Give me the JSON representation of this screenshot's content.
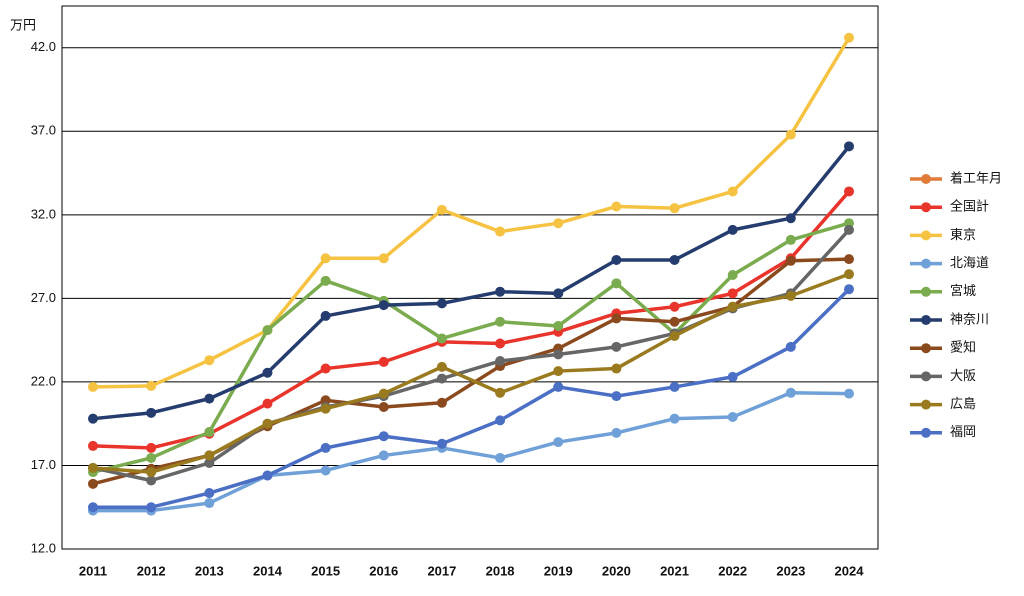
{
  "chart_data": {
    "type": "line",
    "y_unit": "万円",
    "x": [
      "2011",
      "2012",
      "2013",
      "2014",
      "2015",
      "2016",
      "2017",
      "2018",
      "2019",
      "2020",
      "2021",
      "2022",
      "2023",
      "2024"
    ],
    "ylim": [
      12,
      44.5
    ],
    "yticks": [
      {
        "value": 12,
        "label": "12.0"
      },
      {
        "value": 17,
        "label": "17.0"
      },
      {
        "value": 22,
        "label": "22.0"
      },
      {
        "value": 27,
        "label": "27.0"
      },
      {
        "value": 32,
        "label": "32.0"
      },
      {
        "value": 37,
        "label": "37.0"
      },
      {
        "value": 42,
        "label": "42.0"
      }
    ],
    "grid": true,
    "legend": "right",
    "series": [
      {
        "name": "着工年月",
        "color": "#e07b39",
        "values": [
          null,
          null,
          null,
          null,
          null,
          null,
          null,
          null,
          null,
          null,
          null,
          null,
          null,
          null
        ]
      },
      {
        "name": "全国計",
        "color": "#e8342a",
        "values": [
          18.17,
          18.05,
          18.9,
          20.7,
          22.8,
          23.2,
          24.4,
          24.3,
          25.0,
          26.1,
          26.5,
          27.3,
          29.4,
          33.4
        ]
      },
      {
        "name": "東京",
        "color": "#f5c242",
        "values": [
          21.7,
          21.76,
          23.3,
          25.1,
          29.4,
          29.4,
          32.3,
          31.0,
          31.5,
          32.5,
          32.4,
          33.4,
          36.8,
          42.6
        ]
      },
      {
        "name": "北海道",
        "color": "#6fa0d8",
        "values": [
          14.3,
          14.3,
          14.75,
          16.4,
          16.7,
          17.6,
          18.05,
          17.45,
          18.4,
          18.95,
          19.8,
          19.9,
          21.35,
          21.3
        ]
      },
      {
        "name": "宮城",
        "color": "#7aab4e",
        "values": [
          16.6,
          17.45,
          19.0,
          25.1,
          28.05,
          26.85,
          24.6,
          25.6,
          25.35,
          27.9,
          24.9,
          28.4,
          30.5,
          31.5
        ]
      },
      {
        "name": "神奈川",
        "color": "#253d6e",
        "values": [
          19.8,
          20.15,
          21.0,
          22.55,
          25.95,
          26.6,
          26.7,
          27.4,
          27.3,
          29.3,
          29.3,
          31.1,
          31.8,
          36.1
        ]
      },
      {
        "name": "愛知",
        "color": "#8b4a1e",
        "values": [
          15.9,
          16.8,
          17.6,
          19.35,
          20.9,
          20.5,
          20.75,
          22.95,
          24.0,
          25.8,
          25.6,
          26.5,
          29.25,
          29.35
        ]
      },
      {
        "name": "大阪",
        "color": "#666666",
        "values": [
          16.85,
          16.1,
          17.15,
          19.5,
          20.5,
          21.15,
          22.2,
          23.25,
          23.65,
          24.1,
          24.9,
          26.4,
          27.3,
          31.1
        ]
      },
      {
        "name": "広島",
        "color": "#9a7a1f",
        "values": [
          16.85,
          16.6,
          17.6,
          19.5,
          20.4,
          21.3,
          22.9,
          21.35,
          22.65,
          22.8,
          24.75,
          26.5,
          27.15,
          28.45
        ]
      },
      {
        "name": "福岡",
        "color": "#4a6fc4",
        "values": [
          14.5,
          14.5,
          15.35,
          16.4,
          18.05,
          18.75,
          18.3,
          19.7,
          21.7,
          21.15,
          21.7,
          22.3,
          24.1,
          27.55
        ]
      }
    ]
  }
}
